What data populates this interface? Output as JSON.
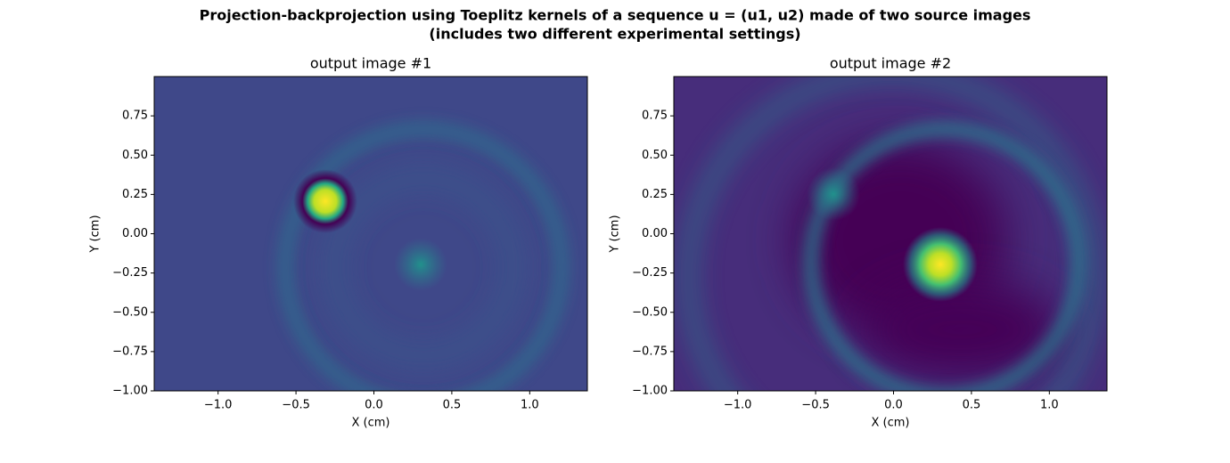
{
  "suptitle": [
    "Projection-backprojection using Toeplitz kernels of a sequence u = (u1, u2) made of two source images",
    "(includes two different experimental settings)"
  ],
  "chart_data": [
    {
      "type": "image",
      "title": "output image #1",
      "x_label": "X (cm)",
      "y_label": "Y (cm)",
      "xlim": [
        -1.41,
        1.37
      ],
      "ylim": [
        -1,
        1
      ],
      "xticks": [
        {
          "value": -1,
          "label": "−1.0"
        },
        {
          "value": -0.5,
          "label": "−0.5"
        },
        {
          "value": 0,
          "label": "0.0"
        },
        0.5,
        {
          "value": 1,
          "label": "1.0"
        }
      ],
      "yticks": [
        {
          "value": -1,
          "label": "−1.00"
        },
        {
          "value": -0.75,
          "label": "−0.75"
        },
        {
          "value": -0.5,
          "label": "−0.50"
        },
        {
          "value": -0.25,
          "label": "−0.25"
        },
        {
          "value": 0,
          "label": "0.00"
        },
        0.25,
        {
          "value": 0.5,
          "label": "0.50"
        },
        0.75
      ]
    },
    {
      "type": "image",
      "title": "output image #2",
      "x_label": "X (cm)",
      "y_label": "Y (cm)",
      "xlim": [
        -1.41,
        1.37
      ],
      "ylim": [
        -1,
        1
      ],
      "xticks": [
        {
          "value": -1,
          "label": "−1.0"
        },
        {
          "value": -0.5,
          "label": "−0.5"
        },
        {
          "value": 0,
          "label": "0.0"
        },
        0.5,
        {
          "value": 1,
          "label": "1.0"
        }
      ],
      "yticks": [
        {
          "value": -1,
          "label": "−1.00"
        },
        {
          "value": -0.75,
          "label": "−0.75"
        },
        {
          "value": -0.5,
          "label": "−0.50"
        },
        {
          "value": -0.25,
          "label": "−0.25"
        },
        {
          "value": 0,
          "label": "0.00"
        },
        0.25,
        {
          "value": 0.5,
          "label": "0.50"
        },
        0.75
      ]
    }
  ]
}
